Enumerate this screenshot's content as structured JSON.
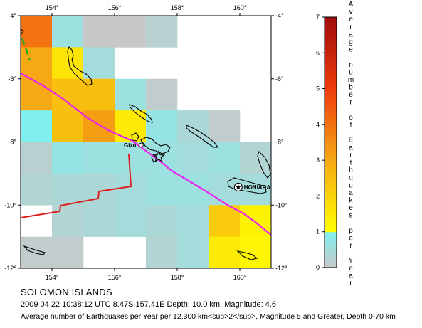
{
  "map": {
    "lon_ticks": [
      "154°",
      "156°",
      "158°",
      "160°"
    ],
    "lat_ticks": [
      "-4°",
      "-6°",
      "-8°",
      "-10°",
      "-12°"
    ],
    "lon_range": [
      153,
      161
    ],
    "lat_range": [
      -12,
      -4
    ],
    "cities": [
      {
        "name": "Gizo",
        "lon": 156.85,
        "lat": -8.1
      },
      {
        "name": "HONIARA",
        "lon": 159.95,
        "lat": -9.43
      }
    ],
    "epicenter": {
      "lon": 157.41,
      "lat": -8.47
    },
    "grid_values_rows_north_to_south": [
      [
        4.0,
        0.6,
        0.0,
        0.0,
        0.2,
        null,
        null,
        null
      ],
      [
        3.0,
        1.6,
        0.5,
        null,
        null,
        null,
        null,
        null
      ],
      [
        3.0,
        2.5,
        2.5,
        0.6,
        0.1,
        null,
        null,
        null
      ],
      [
        1.0,
        2.5,
        3.2,
        1.5,
        0.7,
        0.4,
        0.1,
        null
      ],
      [
        0.2,
        0.7,
        0.6,
        0.6,
        0.6,
        0.5,
        0.6,
        0.3
      ],
      [
        0.3,
        0.4,
        0.4,
        0.5,
        0.6,
        0.6,
        0.5,
        0.5
      ],
      [
        null,
        0.3,
        0.4,
        0.5,
        0.4,
        0.5,
        2.2,
        1.3
      ],
      [
        0.1,
        0.1,
        null,
        null,
        0.3,
        0.5,
        1.5,
        1.2
      ]
    ],
    "colors": {
      "plate_boundary": "#ee22ee",
      "fault_line": "#dd1f1f",
      "dashed_boundary": "#22aa22",
      "land_outline": "#000000"
    }
  },
  "colorbar": {
    "title": "Average number of Earthquakes per Year",
    "ticks": [
      "0",
      "1",
      "2",
      "3",
      "4",
      "5",
      "6",
      "7"
    ],
    "range": [
      0,
      7
    ],
    "stops": [
      {
        "value": 0,
        "color": "#c8c8c8"
      },
      {
        "value": 1,
        "color": "#7ff0ee"
      },
      {
        "value": 1,
        "color": "#ffff00"
      },
      {
        "value": 3,
        "color": "#f6a914"
      },
      {
        "value": 5,
        "color": "#ee3c0c"
      },
      {
        "value": 7,
        "color": "#a00c0c"
      }
    ]
  },
  "caption": {
    "region": "SOLOMON ISLANDS",
    "event": "2009 04 22 10:38:12 UTC 8.47S 157.41E Depth: 10.0 km, Magnitude: 4.6",
    "legend": "Average number of Earthquakes per Year per 12,300 km<sup>2</sup>, Magnitude 5 and Greater, Depth 0-70 km"
  }
}
